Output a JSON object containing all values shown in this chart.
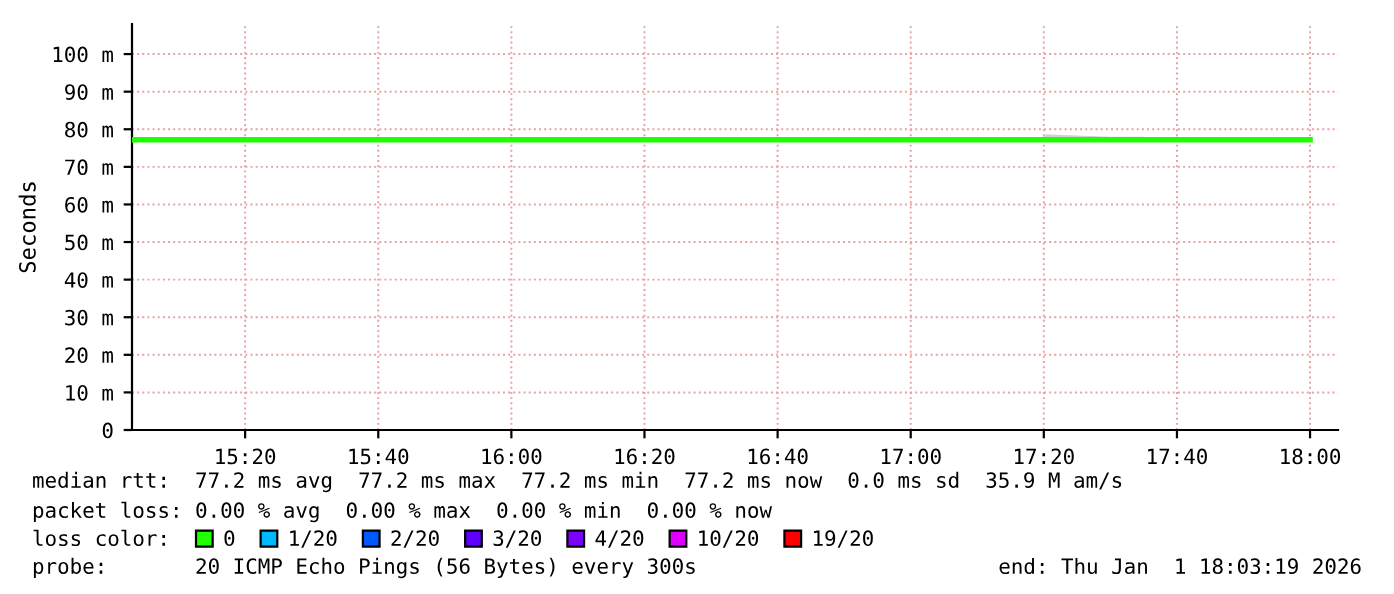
{
  "chart_data": {
    "type": "line",
    "ylabel": "Seconds",
    "legend_title": "loss color:",
    "x": [
      15.05,
      17.333,
      17.5,
      17.583,
      18.0
    ],
    "series": [
      {
        "name": "0",
        "color": "#20ff00",
        "values": [
          77.2,
          77.2,
          77.2,
          77.2,
          77.2
        ],
        "lower": [
          null,
          77.2,
          77.2,
          77.2,
          null
        ],
        "upper": [
          null,
          78.7,
          78,
          78,
          null
        ]
      },
      {
        "name": "1/20",
        "color": "#00b8ff",
        "values": [
          null,
          null,
          null,
          null,
          null
        ]
      },
      {
        "name": "2/20",
        "color": "#0059ff",
        "values": [
          null,
          null,
          null,
          null,
          null
        ]
      },
      {
        "name": "3/20",
        "color": "#5e00ff",
        "values": [
          null,
          null,
          null,
          null,
          null
        ]
      },
      {
        "name": "4/20",
        "color": "#7e00ff",
        "values": [
          null,
          null,
          null,
          null,
          null
        ]
      },
      {
        "name": "10/20",
        "color": "#dd00ff",
        "values": [
          null,
          null,
          null,
          null,
          null
        ]
      },
      {
        "name": "19/20",
        "color": "#ff0000",
        "values": [
          null,
          null,
          null,
          null,
          null
        ]
      }
    ],
    "xlim": [
      15.05,
      18.07
    ],
    "xticks": [
      {
        "value": 15.3333,
        "label": "15:20"
      },
      {
        "value": 15.6667,
        "label": "15:40"
      },
      {
        "value": 16.0,
        "label": "16:00"
      },
      {
        "value": 16.3333,
        "label": "16:20"
      },
      {
        "value": 16.6667,
        "label": "16:40"
      },
      {
        "value": 17.0,
        "label": "17:00"
      },
      {
        "value": 17.3333,
        "label": "17:20"
      },
      {
        "value": 17.6667,
        "label": "17:40"
      },
      {
        "value": 18.0,
        "label": "18:00"
      }
    ],
    "ylim": [
      0,
      108
    ],
    "yticks": [
      0,
      {
        "value": 10,
        "label": "10 m"
      },
      {
        "value": 20,
        "label": "20 m"
      },
      {
        "value": 30,
        "label": "30 m"
      },
      {
        "value": 40,
        "label": "40 m"
      },
      {
        "value": 50,
        "label": "50 m"
      },
      {
        "value": 60,
        "label": "60 m"
      },
      {
        "value": 70,
        "label": "70 m"
      },
      {
        "value": 80,
        "label": "80 m"
      },
      {
        "value": 90,
        "label": "90 m"
      },
      {
        "value": 100,
        "label": "100 m"
      }
    ],
    "grid": true,
    "legend": "bottom",
    "marker": "none",
    "line_style": "solid",
    "annotations": [
      "median rtt:  77.2 ms avg  77.2 ms max  77.2 ms min  77.2 ms now  0.0 ms sd  35.9 M am/s",
      "packet loss: 0.00 % avg  0.00 % max  0.00 % min  0.00 % now",
      "probe:       20 ICMP Echo Pings (56 Bytes) every 300s",
      "end: Thu Jan  1 18:03:19 2026"
    ]
  }
}
